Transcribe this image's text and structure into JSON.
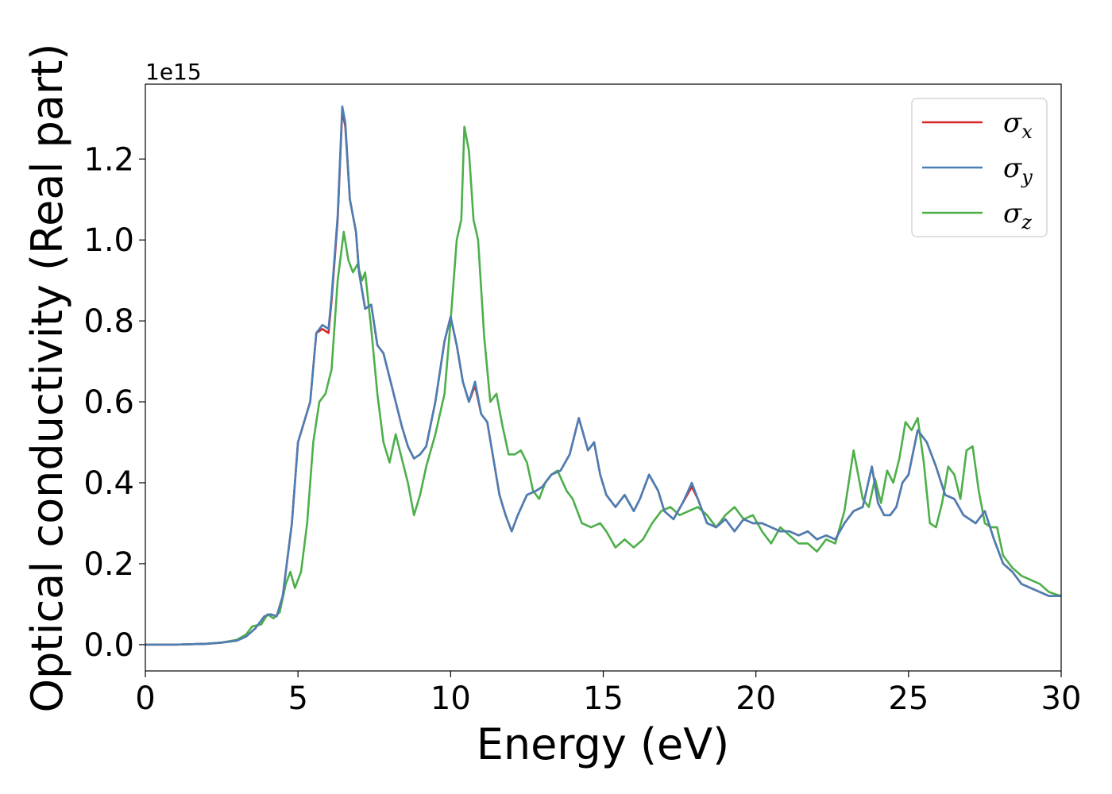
{
  "chart_data": {
    "type": "line",
    "title": "",
    "xlabel": "Energy (eV)",
    "ylabel": "Optical conductivity (Real part)",
    "y_offset_label": "1e15",
    "xlim": [
      0,
      30
    ],
    "ylim": [
      -0.065,
      1.385
    ],
    "x_ticks": [
      0,
      5,
      10,
      15,
      20,
      25,
      30
    ],
    "x_tick_labels": [
      "0",
      "5",
      "10",
      "15",
      "20",
      "25",
      "30"
    ],
    "y_ticks": [
      0.0,
      0.2,
      0.4,
      0.6,
      0.8,
      1.0,
      1.2
    ],
    "y_tick_labels": [
      "0.0",
      "0.2",
      "0.4",
      "0.6",
      "0.8",
      "1.0",
      "1.2"
    ],
    "grid": false,
    "legend_position": "top-right",
    "series": [
      {
        "name": "σx",
        "legend_base": "σ",
        "legend_sub": "x",
        "color": "#d62728",
        "x": [
          0,
          1,
          2,
          2.5,
          3,
          3.3,
          3.6,
          3.9,
          4.1,
          4.3,
          4.5,
          4.8,
          5.0,
          5.2,
          5.4,
          5.6,
          5.8,
          6.0,
          6.1,
          6.3,
          6.45,
          6.55,
          6.7,
          6.9,
          7.0,
          7.2,
          7.4,
          7.6,
          7.8,
          8.0,
          8.2,
          8.4,
          8.6,
          8.8,
          9.0,
          9.2,
          9.5,
          9.8,
          10.0,
          10.2,
          10.4,
          10.6,
          10.8,
          11.0,
          11.2,
          11.4,
          11.6,
          11.8,
          12.0,
          12.2,
          12.5,
          12.8,
          13.0,
          13.3,
          13.6,
          13.9,
          14.2,
          14.5,
          14.7,
          14.9,
          15.1,
          15.4,
          15.7,
          16.0,
          16.2,
          16.5,
          16.8,
          17.0,
          17.3,
          17.6,
          17.9,
          18.1,
          18.4,
          18.7,
          19.0,
          19.3,
          19.6,
          19.9,
          20.2,
          20.5,
          20.8,
          21.1,
          21.4,
          21.7,
          22.0,
          22.3,
          22.6,
          22.9,
          23.2,
          23.5,
          23.8,
          24.0,
          24.2,
          24.4,
          24.6,
          24.8,
          25.0,
          25.3,
          25.6,
          25.9,
          26.2,
          26.5,
          26.8,
          27.0,
          27.2,
          27.5,
          27.8,
          28.1,
          28.4,
          28.7,
          29.0,
          29.3,
          29.6,
          30.0
        ],
        "values": [
          0,
          0,
          0.002,
          0.005,
          0.01,
          0.02,
          0.04,
          0.07,
          0.075,
          0.07,
          0.12,
          0.3,
          0.5,
          0.55,
          0.6,
          0.77,
          0.78,
          0.77,
          0.85,
          1.05,
          1.32,
          1.28,
          1.1,
          1.02,
          0.92,
          0.83,
          0.84,
          0.74,
          0.72,
          0.66,
          0.6,
          0.54,
          0.49,
          0.46,
          0.47,
          0.49,
          0.6,
          0.75,
          0.81,
          0.74,
          0.65,
          0.6,
          0.64,
          0.57,
          0.55,
          0.46,
          0.37,
          0.32,
          0.28,
          0.32,
          0.37,
          0.38,
          0.39,
          0.42,
          0.43,
          0.47,
          0.56,
          0.48,
          0.5,
          0.42,
          0.37,
          0.34,
          0.37,
          0.33,
          0.36,
          0.42,
          0.38,
          0.33,
          0.31,
          0.35,
          0.39,
          0.36,
          0.3,
          0.29,
          0.31,
          0.28,
          0.31,
          0.3,
          0.3,
          0.29,
          0.28,
          0.28,
          0.27,
          0.28,
          0.26,
          0.27,
          0.26,
          0.3,
          0.33,
          0.34,
          0.44,
          0.35,
          0.32,
          0.32,
          0.34,
          0.4,
          0.42,
          0.53,
          0.5,
          0.44,
          0.37,
          0.36,
          0.32,
          0.31,
          0.3,
          0.33,
          0.26,
          0.2,
          0.18,
          0.15,
          0.14,
          0.13,
          0.12,
          0.12
        ]
      },
      {
        "name": "σy",
        "legend_base": "σ",
        "legend_sub": "y",
        "color": "#4a7fb5",
        "x": [
          0,
          1,
          2,
          2.5,
          3,
          3.3,
          3.6,
          3.9,
          4.1,
          4.3,
          4.5,
          4.8,
          5.0,
          5.2,
          5.4,
          5.6,
          5.8,
          6.0,
          6.1,
          6.3,
          6.45,
          6.55,
          6.7,
          6.9,
          7.0,
          7.2,
          7.4,
          7.6,
          7.8,
          8.0,
          8.2,
          8.4,
          8.6,
          8.8,
          9.0,
          9.2,
          9.5,
          9.8,
          10.0,
          10.2,
          10.4,
          10.6,
          10.8,
          11.0,
          11.2,
          11.4,
          11.6,
          11.8,
          12.0,
          12.2,
          12.5,
          12.8,
          13.0,
          13.3,
          13.6,
          13.9,
          14.2,
          14.5,
          14.7,
          14.9,
          15.1,
          15.4,
          15.7,
          16.0,
          16.2,
          16.5,
          16.8,
          17.0,
          17.3,
          17.6,
          17.9,
          18.1,
          18.4,
          18.7,
          19.0,
          19.3,
          19.6,
          19.9,
          20.2,
          20.5,
          20.8,
          21.1,
          21.4,
          21.7,
          22.0,
          22.3,
          22.6,
          22.9,
          23.2,
          23.5,
          23.8,
          24.0,
          24.2,
          24.4,
          24.6,
          24.8,
          25.0,
          25.3,
          25.6,
          25.9,
          26.2,
          26.5,
          26.8,
          27.0,
          27.2,
          27.5,
          27.8,
          28.1,
          28.4,
          28.7,
          29.0,
          29.3,
          29.6,
          30.0
        ],
        "values": [
          0,
          0,
          0.002,
          0.005,
          0.01,
          0.02,
          0.04,
          0.07,
          0.075,
          0.07,
          0.12,
          0.3,
          0.5,
          0.55,
          0.6,
          0.77,
          0.79,
          0.78,
          0.86,
          1.06,
          1.33,
          1.29,
          1.1,
          1.02,
          0.92,
          0.83,
          0.84,
          0.74,
          0.72,
          0.66,
          0.6,
          0.54,
          0.49,
          0.46,
          0.47,
          0.49,
          0.6,
          0.75,
          0.81,
          0.74,
          0.65,
          0.6,
          0.65,
          0.57,
          0.55,
          0.46,
          0.37,
          0.32,
          0.28,
          0.32,
          0.37,
          0.38,
          0.39,
          0.42,
          0.43,
          0.47,
          0.56,
          0.48,
          0.5,
          0.42,
          0.37,
          0.34,
          0.37,
          0.33,
          0.36,
          0.42,
          0.38,
          0.33,
          0.31,
          0.35,
          0.4,
          0.36,
          0.3,
          0.29,
          0.31,
          0.28,
          0.31,
          0.3,
          0.3,
          0.29,
          0.28,
          0.28,
          0.27,
          0.28,
          0.26,
          0.27,
          0.26,
          0.3,
          0.33,
          0.34,
          0.44,
          0.35,
          0.32,
          0.32,
          0.34,
          0.4,
          0.42,
          0.53,
          0.5,
          0.44,
          0.37,
          0.36,
          0.32,
          0.31,
          0.3,
          0.33,
          0.26,
          0.2,
          0.18,
          0.15,
          0.14,
          0.13,
          0.12,
          0.12
        ]
      },
      {
        "name": "σz",
        "legend_base": "σ",
        "legend_sub": "z",
        "color": "#4daf4a",
        "x": [
          0,
          1,
          2,
          2.5,
          3,
          3.3,
          3.5,
          3.8,
          4.0,
          4.2,
          4.4,
          4.6,
          4.75,
          4.9,
          5.1,
          5.3,
          5.5,
          5.7,
          5.9,
          6.1,
          6.3,
          6.5,
          6.65,
          6.8,
          6.95,
          7.1,
          7.2,
          7.4,
          7.6,
          7.8,
          8.0,
          8.2,
          8.4,
          8.6,
          8.8,
          9.0,
          9.2,
          9.5,
          9.8,
          10.0,
          10.2,
          10.35,
          10.45,
          10.6,
          10.75,
          10.9,
          11.1,
          11.3,
          11.5,
          11.7,
          11.9,
          12.1,
          12.3,
          12.5,
          12.7,
          12.9,
          13.1,
          13.3,
          13.5,
          13.8,
          14.0,
          14.3,
          14.6,
          14.9,
          15.1,
          15.4,
          15.7,
          16.0,
          16.3,
          16.6,
          16.9,
          17.2,
          17.5,
          17.8,
          18.1,
          18.4,
          18.7,
          19.0,
          19.3,
          19.6,
          19.9,
          20.2,
          20.5,
          20.8,
          21.1,
          21.4,
          21.7,
          22.0,
          22.3,
          22.6,
          22.9,
          23.2,
          23.5,
          23.7,
          23.9,
          24.1,
          24.3,
          24.5,
          24.7,
          24.9,
          25.1,
          25.3,
          25.5,
          25.7,
          25.9,
          26.1,
          26.3,
          26.5,
          26.7,
          26.9,
          27.1,
          27.3,
          27.5,
          27.7,
          27.9,
          28.1,
          28.4,
          28.7,
          29.0,
          29.3,
          29.6,
          30.0
        ],
        "values": [
          0,
          0,
          0.002,
          0.005,
          0.012,
          0.025,
          0.045,
          0.05,
          0.075,
          0.065,
          0.08,
          0.15,
          0.18,
          0.14,
          0.18,
          0.3,
          0.5,
          0.6,
          0.62,
          0.68,
          0.9,
          1.02,
          0.95,
          0.92,
          0.94,
          0.9,
          0.92,
          0.78,
          0.62,
          0.5,
          0.45,
          0.52,
          0.46,
          0.4,
          0.32,
          0.37,
          0.44,
          0.52,
          0.62,
          0.8,
          1.0,
          1.05,
          1.28,
          1.22,
          1.05,
          1.0,
          0.76,
          0.6,
          0.62,
          0.54,
          0.47,
          0.47,
          0.48,
          0.45,
          0.38,
          0.36,
          0.4,
          0.42,
          0.43,
          0.38,
          0.36,
          0.3,
          0.29,
          0.3,
          0.28,
          0.24,
          0.26,
          0.24,
          0.26,
          0.3,
          0.33,
          0.34,
          0.32,
          0.33,
          0.34,
          0.32,
          0.29,
          0.32,
          0.34,
          0.31,
          0.32,
          0.28,
          0.25,
          0.29,
          0.27,
          0.25,
          0.25,
          0.23,
          0.26,
          0.25,
          0.33,
          0.48,
          0.36,
          0.34,
          0.41,
          0.35,
          0.43,
          0.4,
          0.46,
          0.55,
          0.53,
          0.56,
          0.45,
          0.3,
          0.29,
          0.35,
          0.44,
          0.42,
          0.36,
          0.48,
          0.49,
          0.38,
          0.3,
          0.29,
          0.29,
          0.22,
          0.19,
          0.17,
          0.16,
          0.15,
          0.13,
          0.12
        ]
      }
    ]
  }
}
